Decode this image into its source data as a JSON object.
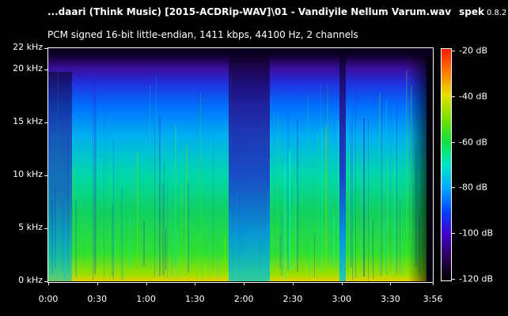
{
  "header": {
    "file_title": "...daari (Think Music) [2015-ACDRip-WAV]\\01 - Vandiyile Nellum Varum.wav",
    "app_name": "spek",
    "app_version": "0.8.2",
    "stream_info": "PCM signed 16-bit little-endian, 1411 kbps, 44100 Hz, 2 channels"
  },
  "chart_data": {
    "type": "heatmap",
    "title": "",
    "xlabel": "",
    "ylabel": "",
    "x_ticks": [
      "0:00",
      "0:30",
      "1:00",
      "1:30",
      "2:00",
      "2:30",
      "3:00",
      "3:30",
      "3:56"
    ],
    "x_tick_seconds": [
      0,
      30,
      60,
      90,
      120,
      150,
      180,
      210,
      236
    ],
    "y_ticks": [
      "0 kHz",
      "5 kHz",
      "10 kHz",
      "15 kHz",
      "20 kHz",
      "22 kHz"
    ],
    "y_tick_khz": [
      0,
      5,
      10,
      15,
      20,
      22
    ],
    "xlim_seconds": [
      0,
      236
    ],
    "ylim_khz": [
      0,
      22
    ],
    "colorbar": {
      "labels": [
        "-20 dB",
        "-40 dB",
        "-60 dB",
        "-80 dB",
        "-100 dB",
        "-120 dB"
      ],
      "values_db": [
        -20,
        -40,
        -60,
        -80,
        -100,
        -120
      ],
      "range_db": [
        -120,
        -20
      ],
      "colors": [
        "#000000",
        "#2a0055",
        "#4400cc",
        "#0044ff",
        "#00aaff",
        "#00e8c8",
        "#10e040",
        "#7ae000",
        "#e8e000",
        "#ff7a00",
        "#ff1a00"
      ]
    },
    "colors": {
      "background": "#000000",
      "text": "#ffffff"
    }
  }
}
